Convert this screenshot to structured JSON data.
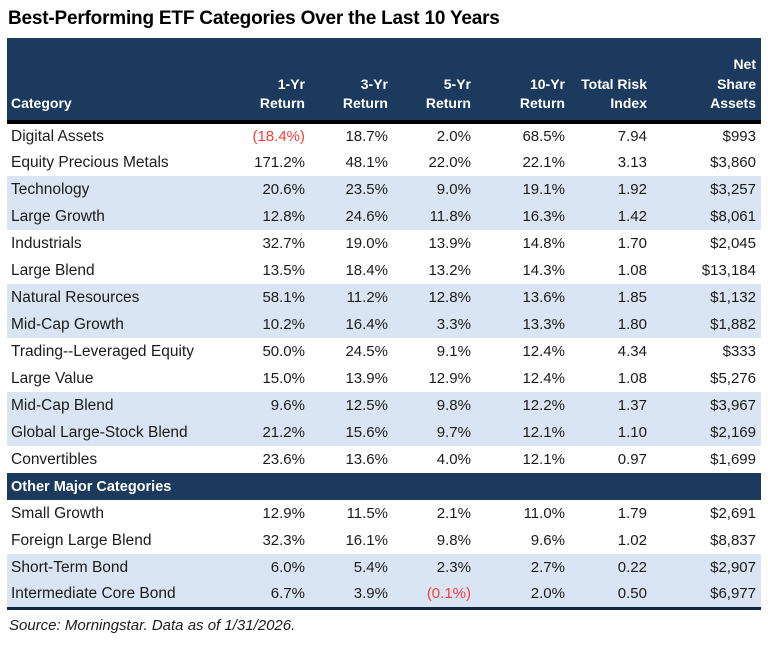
{
  "title": "Best-Performing ETF Categories Over the Last 10 Years",
  "header": {
    "category": "Category",
    "cols": [
      {
        "lines": [
          "1-Yr",
          "Return"
        ]
      },
      {
        "lines": [
          "3-Yr",
          "Return"
        ]
      },
      {
        "lines": [
          "5-Yr",
          "Return"
        ]
      },
      {
        "lines": [
          "10-Yr",
          "Return"
        ]
      },
      {
        "lines": [
          "Total Risk",
          "Index"
        ]
      },
      {
        "lines": [
          "Net",
          "Share",
          "Assets"
        ]
      }
    ]
  },
  "sections": [
    {
      "label": null,
      "rows": [
        {
          "category": "Digital Assets",
          "values": [
            "(18.4%)",
            "18.7%",
            "2.0%",
            "68.5%",
            "7.94",
            "$993"
          ]
        },
        {
          "category": "Equity Precious Metals",
          "values": [
            "171.2%",
            "48.1%",
            "22.0%",
            "22.1%",
            "3.13",
            "$3,860"
          ]
        },
        {
          "category": "Technology",
          "values": [
            "20.6%",
            "23.5%",
            "9.0%",
            "19.1%",
            "1.92",
            "$3,257"
          ]
        },
        {
          "category": "Large Growth",
          "values": [
            "12.8%",
            "24.6%",
            "11.8%",
            "16.3%",
            "1.42",
            "$8,061"
          ]
        },
        {
          "category": "Industrials",
          "values": [
            "32.7%",
            "19.0%",
            "13.9%",
            "14.8%",
            "1.70",
            "$2,045"
          ]
        },
        {
          "category": "Large Blend",
          "values": [
            "13.5%",
            "18.4%",
            "13.2%",
            "14.3%",
            "1.08",
            "$13,184"
          ]
        },
        {
          "category": "Natural Resources",
          "values": [
            "58.1%",
            "11.2%",
            "12.8%",
            "13.6%",
            "1.85",
            "$1,132"
          ]
        },
        {
          "category": "Mid-Cap Growth",
          "values": [
            "10.2%",
            "16.4%",
            "3.3%",
            "13.3%",
            "1.80",
            "$1,882"
          ]
        },
        {
          "category": "Trading--Leveraged Equity",
          "values": [
            "50.0%",
            "24.5%",
            "9.1%",
            "12.4%",
            "4.34",
            "$333"
          ]
        },
        {
          "category": "Large Value",
          "values": [
            "15.0%",
            "13.9%",
            "12.9%",
            "12.4%",
            "1.08",
            "$5,276"
          ]
        },
        {
          "category": "Mid-Cap Blend",
          "values": [
            "9.6%",
            "12.5%",
            "9.8%",
            "12.2%",
            "1.37",
            "$3,967"
          ]
        },
        {
          "category": "Global Large-Stock Blend",
          "values": [
            "21.2%",
            "15.6%",
            "9.7%",
            "12.1%",
            "1.10",
            "$2,169"
          ]
        },
        {
          "category": "Convertibles",
          "values": [
            "23.6%",
            "13.6%",
            "4.0%",
            "12.1%",
            "0.97",
            "$1,699"
          ]
        }
      ]
    },
    {
      "label": "Other Major Categories",
      "rows": [
        {
          "category": "Small Growth",
          "values": [
            "12.9%",
            "11.5%",
            "2.1%",
            "11.0%",
            "1.79",
            "$2,691"
          ]
        },
        {
          "category": "Foreign Large Blend",
          "values": [
            "32.3%",
            "16.1%",
            "9.8%",
            "9.6%",
            "1.02",
            "$8,837"
          ]
        },
        {
          "category": "Short-Term Bond",
          "values": [
            "6.0%",
            "5.4%",
            "2.3%",
            "2.7%",
            "0.22",
            "$2,907"
          ]
        },
        {
          "category": "Intermediate Core Bond",
          "values": [
            "6.7%",
            "3.9%",
            "(0.1%)",
            "2.0%",
            "0.50",
            "$6,977"
          ]
        }
      ]
    }
  ],
  "footer": "Source: Morningstar. Data as of 1/31/2026.",
  "colors": {
    "header_bg": "#1C3A5E",
    "band": "#D9E5F2",
    "negative": "#FA3B3B",
    "title_text": "#000000"
  }
}
